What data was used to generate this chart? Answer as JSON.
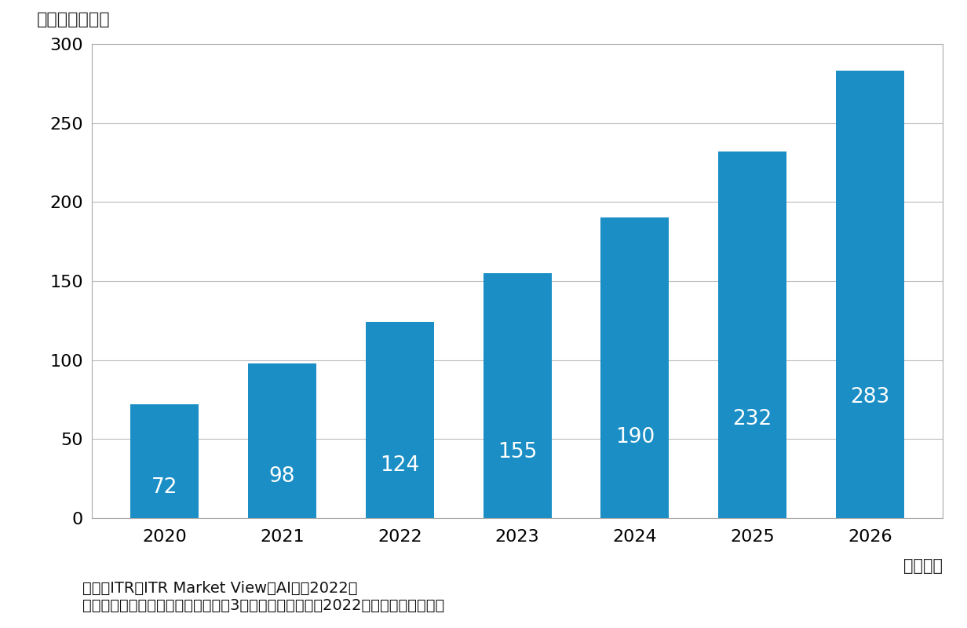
{
  "categories": [
    "2020",
    "2021",
    "2022",
    "2023",
    "2024",
    "2025",
    "2026"
  ],
  "values": [
    72,
    98,
    124,
    155,
    190,
    232,
    283
  ],
  "bar_color": "#1a8ec5",
  "ylim": [
    0,
    300
  ],
  "yticks": [
    0,
    50,
    100,
    150,
    200,
    250,
    300
  ],
  "xlabel": "（年度）",
  "ylabel": "（単位：億円）",
  "label_fontsize": 16,
  "tick_fontsize": 16,
  "value_fontsize": 19,
  "annotation_fontsize": 14,
  "source_line1": "出典：ITR『ITR Market View：AI市刅2022』",
  "source_line2": "＊ベンダーの売上金額を対象とし、3月期ベースで换算　2022年度以降は予測値。",
  "background_color": "#ffffff",
  "plot_background": "#ffffff",
  "grid_color": "#bbbbbb",
  "bar_width": 0.58
}
